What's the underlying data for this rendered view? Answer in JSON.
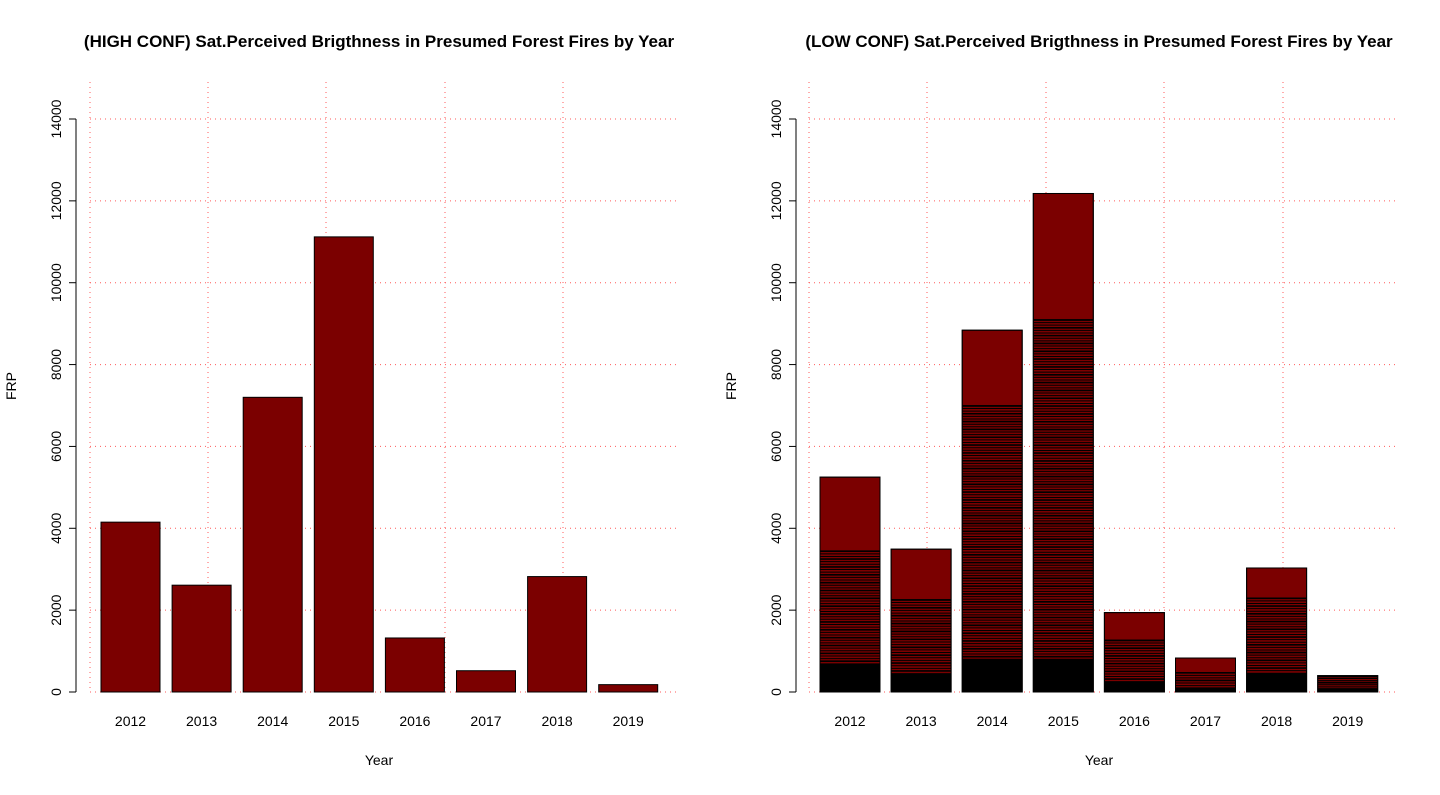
{
  "colors": {
    "bar_fill": "#7b0000",
    "bar_stroke": "#000000",
    "stack_line": "#000000",
    "grid": "#ff5a5a"
  },
  "chart_data": [
    {
      "type": "bar",
      "title": "(HIGH CONF) Sat.Perceived Brigthness in Presumed Forest Fires by Year",
      "xlabel": "Year",
      "ylabel": "FRP",
      "categories": [
        "2012",
        "2013",
        "2014",
        "2015",
        "2016",
        "2017",
        "2018",
        "2019"
      ],
      "values": [
        4150,
        2610,
        7200,
        11120,
        1320,
        520,
        2820,
        180
      ],
      "ylim": [
        0,
        14000
      ],
      "yticks": [
        "0",
        "2000",
        "4000",
        "6000",
        "8000",
        "10000",
        "12000",
        "14000"
      ],
      "grid": true,
      "stacked_segments": false
    },
    {
      "type": "bar",
      "title": "(LOW CONF) Sat.Perceived Brigthness in Presumed Forest Fires by Year",
      "xlabel": "Year",
      "ylabel": "FRP",
      "categories": [
        "2012",
        "2013",
        "2014",
        "2015",
        "2016",
        "2017",
        "2018",
        "2019"
      ],
      "values": [
        5250,
        3490,
        8840,
        12180,
        1940,
        830,
        3030,
        400
      ],
      "dense_segment_top": [
        3440,
        2250,
        6990,
        9090,
        1260,
        470,
        2290,
        380
      ],
      "ylim": [
        0,
        14000
      ],
      "yticks": [
        "0",
        "2000",
        "4000",
        "6000",
        "8000",
        "10000",
        "12000",
        "14000"
      ],
      "grid": true,
      "stacked_segments": true
    }
  ]
}
